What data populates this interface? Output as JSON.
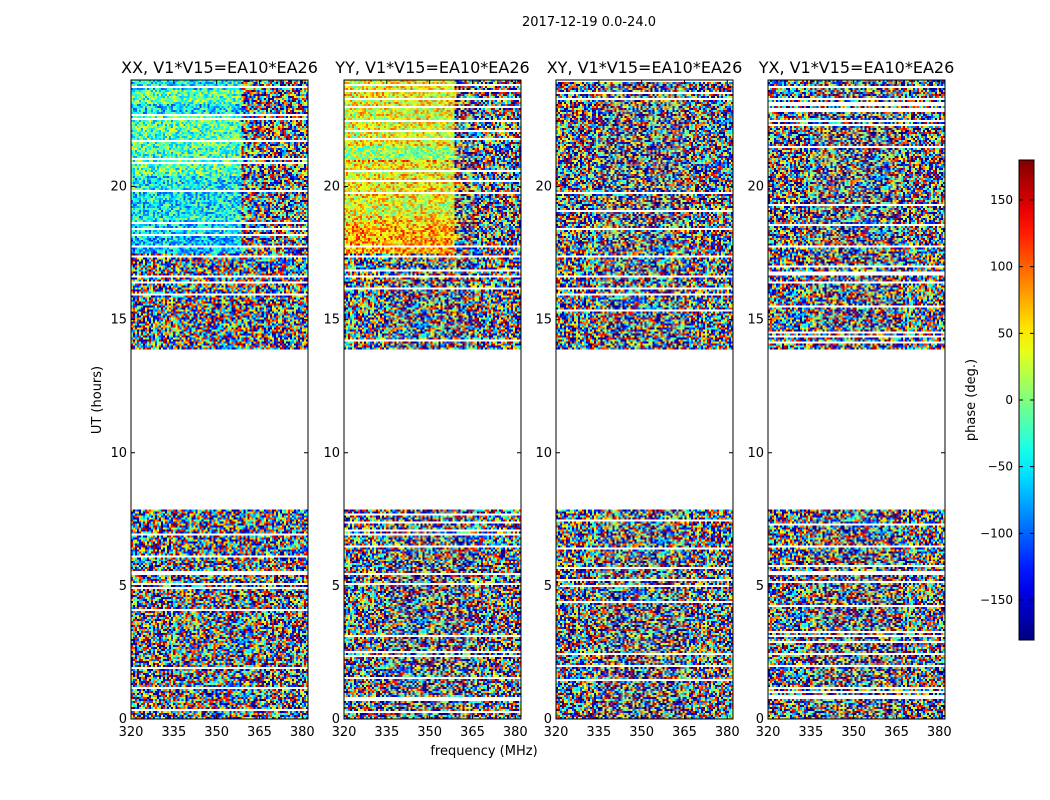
{
  "figure": {
    "suptitle": "2017-12-19 0.0-24.0",
    "xlabel": "frequency (MHz)",
    "ylabel": "UT (hours)"
  },
  "chart_data": {
    "type": "heatmap",
    "description_kind": "dynamic spectrum phase waterfall, 4 panels",
    "xlim": [
      320,
      382
    ],
    "ylim": [
      0,
      24
    ],
    "xticks": [
      320,
      335,
      350,
      365,
      380
    ],
    "yticks": [
      0,
      5,
      10,
      15,
      20
    ],
    "colormap": "jet",
    "colorbar": {
      "label": "phase (deg.)",
      "range": [
        -180,
        180
      ],
      "ticks": [
        -150,
        -100,
        -50,
        0,
        50,
        100,
        150
      ],
      "tick_labels": [
        "−150",
        "−100",
        "−50",
        "0",
        "50",
        "100",
        "150"
      ]
    },
    "data_ut_ranges": [
      [
        0.0,
        7.9
      ],
      [
        13.9,
        24.0
      ]
    ],
    "panels": [
      {
        "title": "XX, V1*V15=EA10*EA26",
        "polarization": "XX"
      },
      {
        "title": "YY, V1*V15=EA10*EA26",
        "polarization": "YY"
      },
      {
        "title": "XY, V1*V15=EA10*EA26",
        "polarization": "XY"
      },
      {
        "title": "YX, V1*V15=EA10*EA26",
        "polarization": "YX"
      }
    ]
  }
}
